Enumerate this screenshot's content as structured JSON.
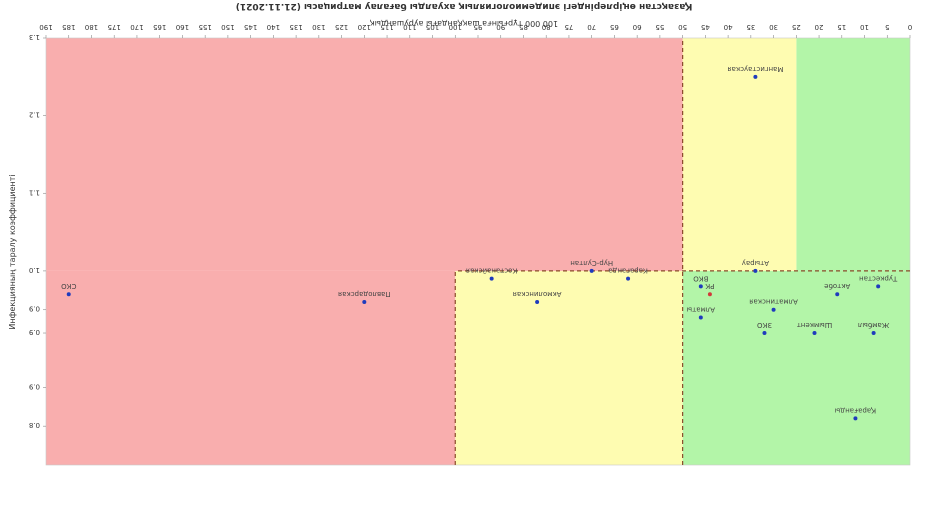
{
  "colors": {
    "green": "#b3f5a8",
    "yellow": "#fefcb1",
    "red": "#f9aeae",
    "point": "#1f3bbd",
    "point_highlight": "#d23a3a",
    "divider": "#8a4a2a",
    "text": "#333333"
  },
  "chart_data": {
    "type": "scatter",
    "orientation": "rotated 180°",
    "title": "Қазақстан өңірлеріндегі эпидемиологиялық ахуалды бағалау матрицасы  (21.11.2021)",
    "xlabel": "100 000 тұрғынға шаққандағы аурушаңдық",
    "ylabel": "Инфекцияның таралу коэффициенті",
    "xlim": [
      0,
      190
    ],
    "ylim": [
      0.75,
      1.3
    ],
    "x_ticks": [
      "0",
      "5",
      "10",
      "15",
      "20",
      "25",
      "30",
      "35",
      "40",
      "45",
      "50",
      "55",
      "60",
      "65",
      "70",
      "75",
      "80",
      "85",
      "90",
      "95",
      "100",
      "105",
      "110",
      "115",
      "120",
      "125",
      "130",
      "135",
      "140",
      "145",
      "150",
      "155",
      "160",
      "165",
      "170",
      "175",
      "180",
      "185",
      "190"
    ],
    "y_ticks": [
      "0.8",
      "0.9",
      "0.9",
      "0.9",
      "1.0",
      "1.1",
      "1.2",
      "1.3"
    ],
    "zones": [
      {
        "name": "green",
        "x": [
          0,
          50
        ],
        "y": [
          0.75,
          1.0
        ]
      },
      {
        "name": "green",
        "x": [
          0,
          25
        ],
        "y": [
          1.0,
          1.3
        ]
      },
      {
        "name": "yellow",
        "x": [
          50,
          100
        ],
        "y": [
          0.75,
          1.0
        ]
      },
      {
        "name": "yellow",
        "x": [
          25,
          50
        ],
        "y": [
          1.0,
          1.3
        ]
      },
      {
        "name": "red",
        "x": [
          100,
          190
        ],
        "y": [
          0.75,
          1.0
        ]
      },
      {
        "name": "red",
        "x": [
          50,
          190
        ],
        "y": [
          1.0,
          1.3
        ]
      }
    ],
    "thresholds": {
      "x": [
        50,
        100
      ],
      "y": [
        1.0
      ]
    },
    "grid": false,
    "points": [
      {
        "label": "Қарағанды",
        "x": 12.0,
        "y": 0.81
      },
      {
        "label": "Шымкент",
        "x": 21.0,
        "y": 0.92
      },
      {
        "label": "Жамбыл",
        "x": 8.0,
        "y": 0.92
      },
      {
        "label": "ЗКО",
        "x": 32.0,
        "y": 0.92
      },
      {
        "label": "Алматинская",
        "x": 30.0,
        "y": 0.95
      },
      {
        "label": "Алматы",
        "x": 46.0,
        "y": 0.94
      },
      {
        "label": "РК",
        "x": 44.0,
        "y": 0.97
      },
      {
        "label": "Актобе",
        "x": 16.0,
        "y": 0.97
      },
      {
        "label": "Туркестан",
        "x": 7.0,
        "y": 0.98
      },
      {
        "label": "Атырау",
        "x": 34.0,
        "y": 1.0
      },
      {
        "label": "ВКО",
        "x": 46.0,
        "y": 0.98
      },
      {
        "label": "Мангистауская",
        "x": 34.0,
        "y": 1.25
      },
      {
        "label": "Караганда",
        "x": 62.0,
        "y": 0.99
      },
      {
        "label": "Нур-Султан",
        "x": 70.0,
        "y": 1.0
      },
      {
        "label": "Акмолинская",
        "x": 82.0,
        "y": 0.96
      },
      {
        "label": "Костанайская",
        "x": 92.0,
        "y": 0.99
      },
      {
        "label": "Павлодарская",
        "x": 120.0,
        "y": 0.96
      },
      {
        "label": "СКО",
        "x": 185.0,
        "y": 0.97
      }
    ]
  }
}
